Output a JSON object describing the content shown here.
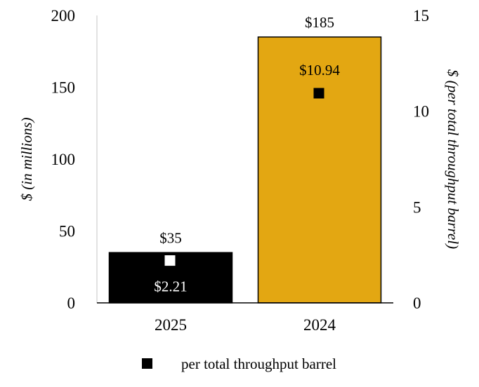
{
  "chart_data": {
    "type": "bar",
    "categories": [
      "2025",
      "2024"
    ],
    "bar_series": {
      "name": "$ (in millions)",
      "values": [
        35,
        185
      ],
      "labels": [
        "$35",
        "$185"
      ],
      "colors": [
        "#000000",
        "#E3A712"
      ],
      "edge_color": "#000000"
    },
    "point_series": {
      "name": "per total throughput barrel",
      "values": [
        2.21,
        10.94
      ],
      "labels": [
        "$2.21",
        "$10.94"
      ],
      "marker_colors": [
        "#ffffff",
        "#000000"
      ],
      "label_colors": [
        "#ffffff",
        "#000000"
      ]
    },
    "y_left": {
      "label": "$ (in millions)",
      "lim": [
        0,
        200
      ],
      "ticks": [
        0,
        50,
        100,
        150,
        200
      ]
    },
    "y_right": {
      "label": "$ (per total throughput barrel)",
      "lim": [
        0,
        15
      ],
      "ticks": [
        0,
        5,
        10,
        15
      ]
    },
    "legend": {
      "entries": [
        "per total throughput barrel"
      ],
      "marker_color": "#000000",
      "position": "bottom-center"
    },
    "grid": false
  }
}
